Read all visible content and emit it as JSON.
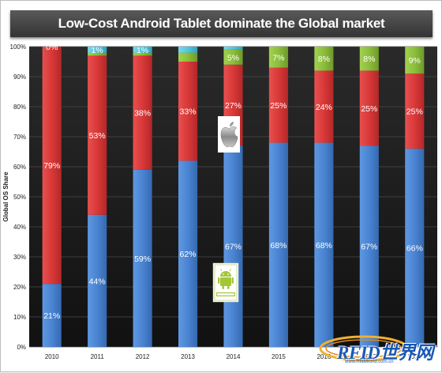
{
  "chart_data": {
    "type": "bar",
    "stacked": true,
    "title": "Low-Cost Android Tablet dominate the Global market",
    "ylabel": "Global OS Share",
    "categories": [
      "2010",
      "2011",
      "2012",
      "2013",
      "2014",
      "2015",
      "2016",
      "2017",
      "2018"
    ],
    "ylim": [
      0,
      100
    ],
    "yticks": [
      "0%",
      "10%",
      "20%",
      "30%",
      "40%",
      "50%",
      "60%",
      "70%",
      "80%",
      "90%",
      "100%"
    ],
    "grid": true,
    "series": [
      {
        "values": [
          21,
          44,
          59,
          62,
          67,
          68,
          68,
          67,
          66
        ],
        "labels": [
          "21%",
          "44%",
          "59%",
          "62%",
          "67%",
          "68%",
          "68%",
          "67%",
          "66%"
        ]
      },
      {
        "values": [
          79,
          53,
          38,
          33,
          27,
          25,
          24,
          25,
          25
        ],
        "labels": [
          "79%",
          "53%",
          "38%",
          "33%",
          "27%",
          "25%",
          "24%",
          "25%",
          "25%"
        ]
      },
      {
        "values": [
          0,
          1,
          1,
          3,
          5,
          7,
          8,
          8,
          9
        ],
        "labels": [
          "0%",
          "1%",
          "1%",
          "",
          "5%",
          "7%",
          "8%",
          "8%",
          "9%"
        ]
      },
      {
        "values": [
          0,
          2,
          2,
          2,
          1,
          0,
          0,
          0,
          0
        ],
        "labels": [
          "",
          "",
          "",
          "",
          "",
          "",
          "",
          "",
          ""
        ]
      }
    ],
    "colors": [
      "#4a84d2",
      "#d93838",
      "#8cbd3c",
      "#52c6df"
    ],
    "annotations": [
      "apple-logo over 2014",
      "android-logo in 2014"
    ]
  },
  "watermark": {
    "text": "RFID世界网",
    "url": "www.RfidWorld.com.cn"
  }
}
